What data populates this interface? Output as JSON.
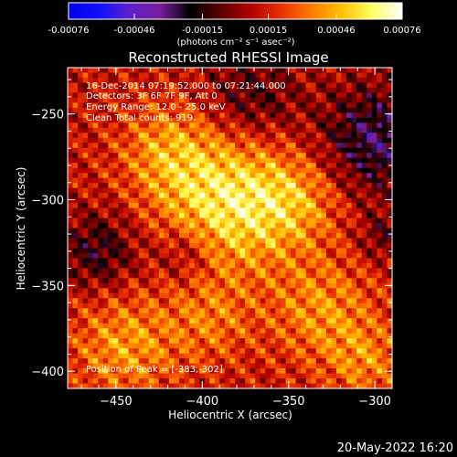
{
  "colorbar": {
    "ticks": [
      "-0.00076",
      "-0.00046",
      "-0.00015",
      "0.00015",
      "0.00046",
      "0.00076"
    ],
    "units": "(photons cm⁻² s⁻¹ asec⁻²)",
    "range": [
      -0.00076,
      0.00076
    ],
    "colors": [
      "#0000e6",
      "#1010ff",
      "#5a20cc",
      "#7a1e9e",
      "#000000",
      "#5a0000",
      "#b00000",
      "#e83000",
      "#ff7a00",
      "#ffc000",
      "#ffff60",
      "#ffffff"
    ]
  },
  "chart_data": {
    "type": "heatmap",
    "title": "Reconstructed RHESSI Image",
    "xlabel": "Heliocentric X (arcsec)",
    "ylabel": "Heliocentric Y (arcsec)",
    "xlim": [
      -478,
      -290
    ],
    "ylim": [
      -410,
      -223
    ],
    "x_ticks": [
      -450,
      -400,
      -350,
      -300
    ],
    "x_tick_labels": [
      "−450",
      "−400",
      "−350",
      "−300"
    ],
    "y_ticks": [
      -250,
      -300,
      -350,
      -400
    ],
    "y_tick_labels": [
      "−250",
      "−300",
      "−350",
      "−400"
    ],
    "peak": [
      -383,
      -302
    ],
    "annotations": {
      "time": "16-Dec-2014 07:19:52.000 to 07:21:44.000",
      "detectors": "Detectors: 3F 6F 7F 9F, Att 0",
      "energy": "Energy Range: 12.0 - 25.0 keV",
      "clean": "Clean     Total counts: 919.",
      "peak_label": "Position of Peak = [-383,-302]"
    }
  },
  "footer": {
    "timestamp": "20-May-2022 16:20"
  }
}
